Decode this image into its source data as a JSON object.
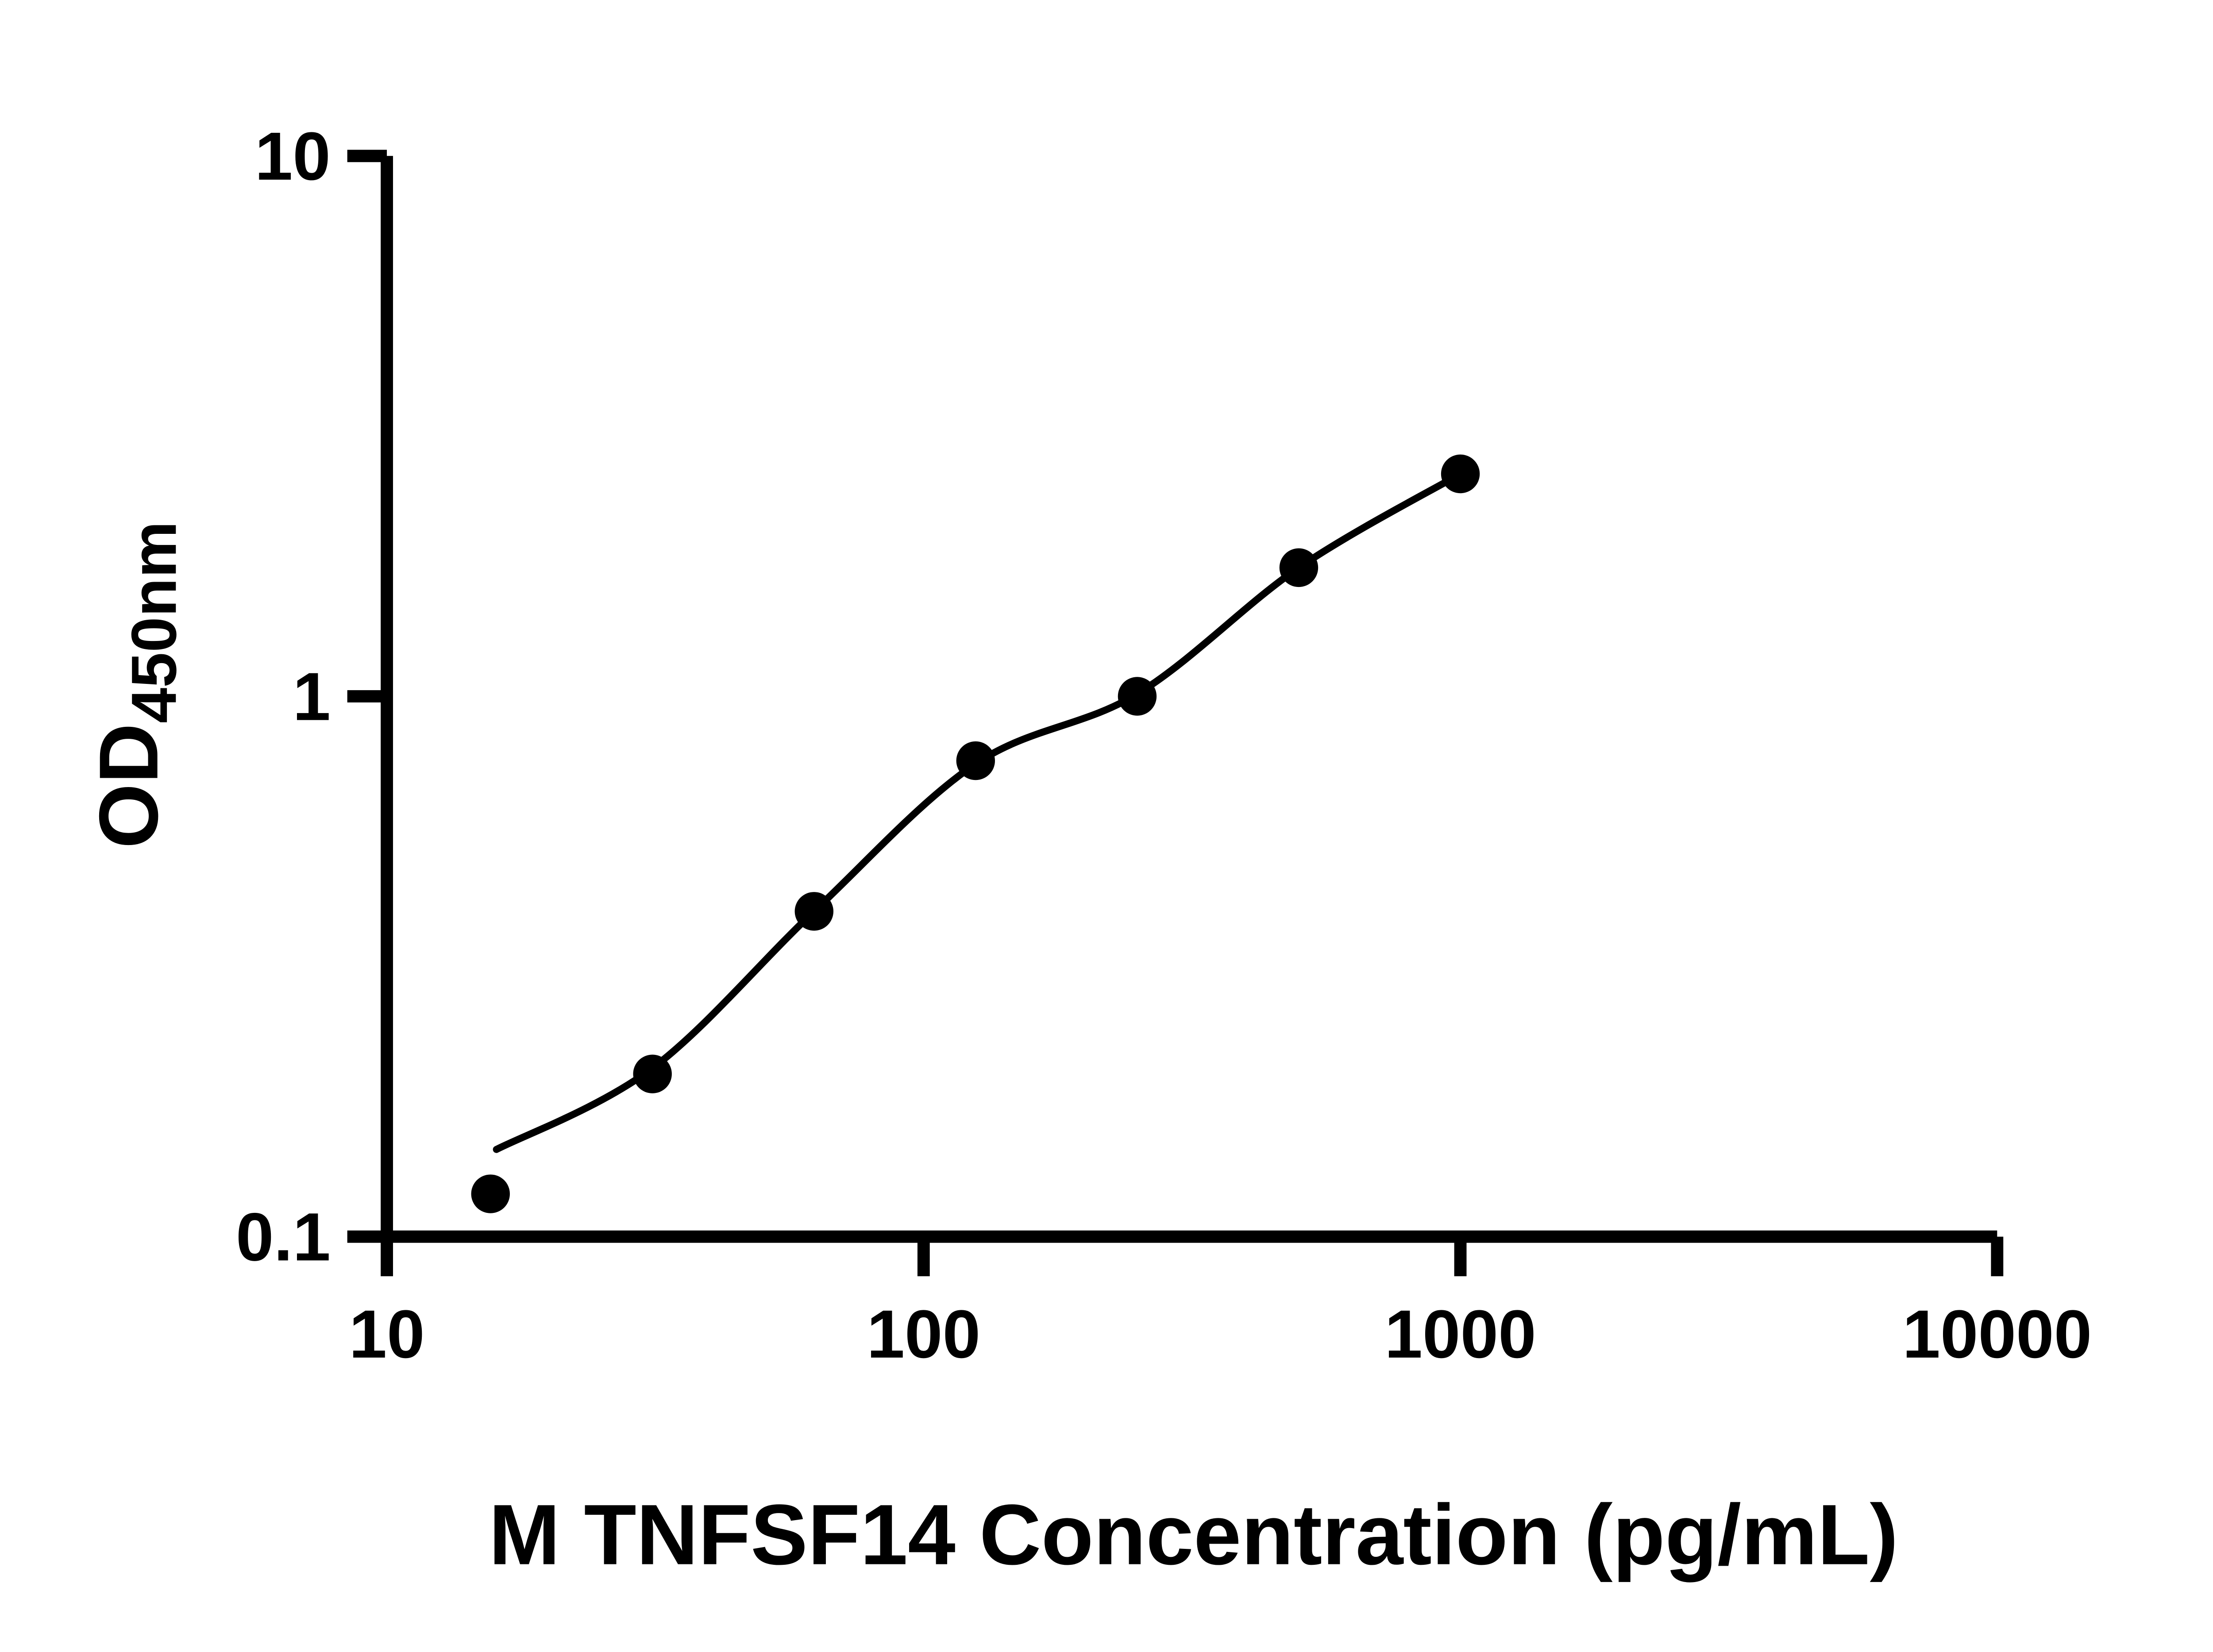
{
  "figure": {
    "background": "#ffffff"
  },
  "chart_data": {
    "type": "scatter",
    "xlabel": "M TNFSF14 Concentration (pg/mL)",
    "ylabel": "OD450nm",
    "ylabel_base": "OD",
    "ylabel_subscript": "450nm",
    "x_scale": "log10",
    "y_scale": "log10",
    "xlim": [
      10,
      10000
    ],
    "ylim": [
      0.1,
      10
    ],
    "x_ticks": [
      10,
      100,
      1000,
      10000
    ],
    "x_tick_labels": [
      "10",
      "100",
      "1000",
      "10000"
    ],
    "y_ticks": [
      0.1,
      1,
      10
    ],
    "y_tick_labels": [
      "0.1",
      "1",
      "10"
    ],
    "grid": false,
    "legend": false,
    "axis_color": "#000000",
    "series": [
      {
        "name": "standard-points",
        "type": "scatter",
        "marker": "circle",
        "color": "#000000",
        "x": [
          15.6,
          31.25,
          62.5,
          125,
          250,
          500,
          1000
        ],
        "y": [
          0.12,
          0.2,
          0.4,
          0.76,
          1.0,
          1.73,
          2.58
        ]
      },
      {
        "name": "fit-curve",
        "type": "line",
        "color": "#000000",
        "x": [
          16,
          31.25,
          62.5,
          125,
          250,
          500,
          1000
        ],
        "y": [
          0.145,
          0.205,
          0.4,
          0.75,
          1.01,
          1.73,
          2.58
        ]
      }
    ]
  }
}
